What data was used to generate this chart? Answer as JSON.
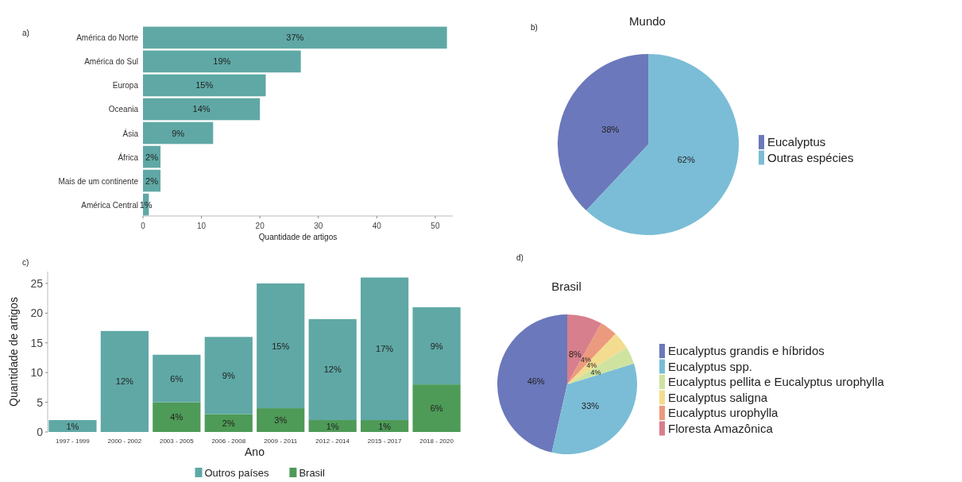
{
  "chart_data": [
    {
      "type": "bar",
      "orientation": "horizontal",
      "xlabel": "Quantidade de artigos",
      "categories": [
        "América do Norte",
        "América do Sul",
        "Europa",
        "Oceania",
        "Ásia",
        "África",
        "Mais de um continente",
        "América Central"
      ],
      "values": [
        52,
        27,
        21,
        20,
        12,
        3,
        3,
        1
      ],
      "color": "#5fa8a5",
      "xlim": [
        0,
        53
      ],
      "xticks": [
        0,
        10,
        20,
        30,
        40,
        50
      ],
      "annotations": [
        "a)",
        {
          "text": "37%",
          "y": "América do Norte",
          "x": 26
        },
        {
          "text": "19%",
          "y": "América do Sul",
          "x": 13.5
        },
        {
          "text": "15%",
          "y": "Europa",
          "x": 10.5
        },
        {
          "text": "14%",
          "y": "Oceania",
          "x": 10
        },
        {
          "text": "9%",
          "y": "Ásia",
          "x": 6
        },
        {
          "text": "2%",
          "y": "África",
          "x": 1.5
        },
        {
          "text": "2%",
          "y": "Mais de um continente",
          "x": 1.5
        },
        {
          "text": "1%",
          "y": "América Central",
          "x": 0.5
        }
      ]
    },
    {
      "type": "pie",
      "title": "Mundo",
      "annotations": [
        "b)"
      ],
      "categories": [
        "Eucalyptus",
        "Outras espécies"
      ],
      "values": [
        38,
        62
      ],
      "colors": [
        "#6b78bb",
        "#7bbdd6"
      ],
      "value_labels": [
        "38%",
        "62%"
      ],
      "legend": "right"
    },
    {
      "type": "bar",
      "stacked": true,
      "xlabel": "Ano",
      "ylabel": "Quantidade de artigos",
      "categories": [
        "1997 - 1999",
        "2000 - 2002",
        "2003 - 2005",
        "2006 - 2008",
        "2009 - 2011",
        "2012 - 2014",
        "2015 - 2017",
        "2018 - 2020"
      ],
      "series": [
        {
          "name": "Brasil",
          "color": "#4e9a57",
          "values": [
            0,
            0,
            5,
            3,
            4,
            2,
            2,
            8
          ]
        },
        {
          "name": "Outros países",
          "color": "#5fa8a5",
          "values": [
            2,
            17,
            8,
            13,
            21,
            17,
            24,
            13
          ]
        }
      ],
      "ylim": [
        0,
        27
      ],
      "yticks": [
        0,
        5,
        10,
        15,
        20,
        25
      ],
      "legend": "bottom",
      "annotations": [
        "c)",
        {
          "text": "4%",
          "x": "2003 - 2005",
          "y": 5
        },
        {
          "text": "2%",
          "x": "2006 - 2008",
          "y": 3
        },
        {
          "text": "3%",
          "x": "2009 - 2011",
          "y": 4
        },
        {
          "text": "1%",
          "x": "2012 - 2014",
          "y": 2
        },
        {
          "text": "1%",
          "x": "2015 - 2017",
          "y": 2
        },
        {
          "text": "6%",
          "x": "2018 - 2020",
          "y": 8
        },
        "1%",
        "12%",
        "6%",
        "9%",
        "15%",
        "12%",
        "17%",
        "9%"
      ]
    },
    {
      "type": "pie",
      "title": "Brasil",
      "annotations": [
        "d)"
      ],
      "categories": [
        "Eucalyptus grandis e híbridos",
        "Eucalyptus spp.",
        "Eucalyptus pellita e Eucalyptus urophylla",
        "Eucalyptus saligna",
        "Eucalyptus urophylla",
        "Floresta Amazônica"
      ],
      "values": [
        46,
        33,
        4,
        4,
        4,
        8
      ],
      "colors": [
        "#6b78bb",
        "#7bbdd6",
        "#cfe3a0",
        "#f3dc8f",
        "#ec9a7e",
        "#d77f8c"
      ],
      "value_labels": [
        "46%",
        "33%",
        "4%",
        "4%",
        "4%",
        "8%"
      ],
      "legend": "right"
    }
  ]
}
